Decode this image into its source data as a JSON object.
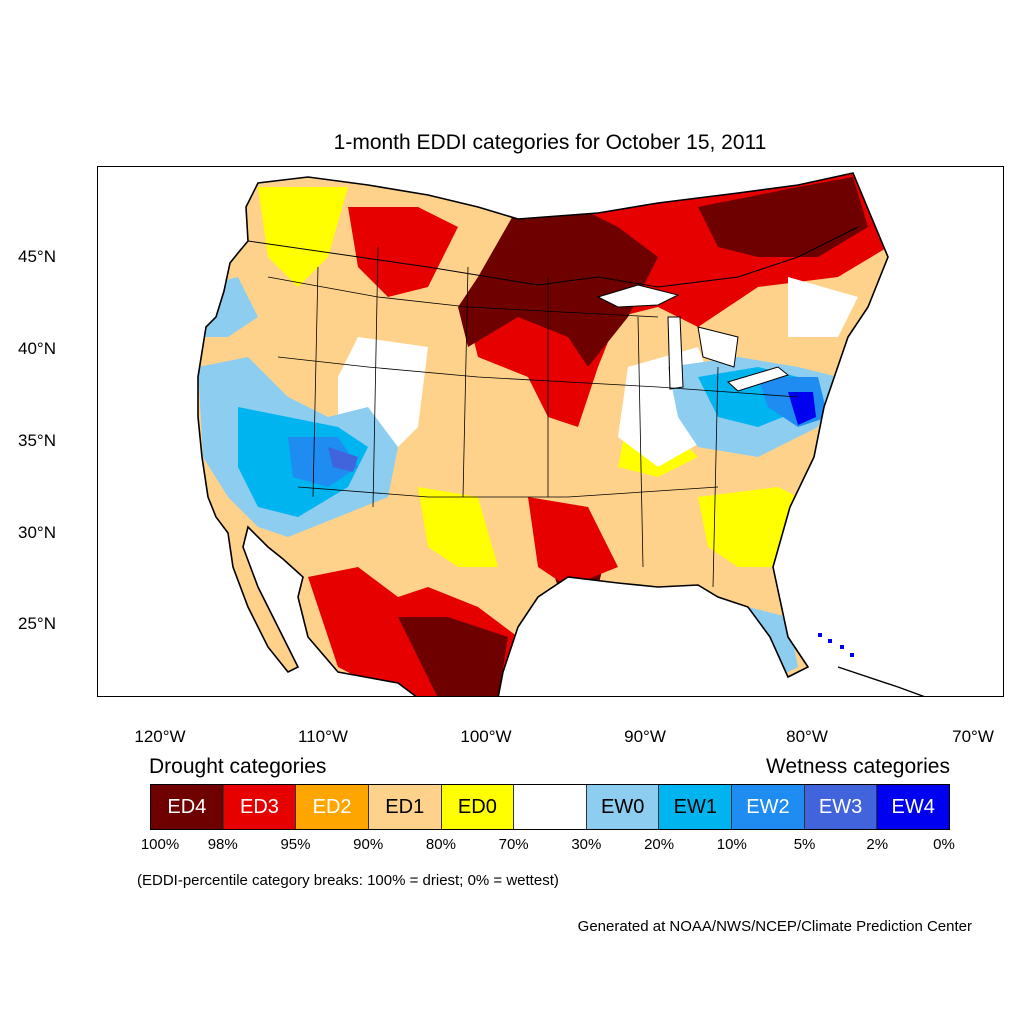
{
  "title": "1-month EDDI categories for October 15, 2011",
  "map": {
    "lat_labels": [
      "45°N",
      "40°N",
      "35°N",
      "30°N",
      "25°N"
    ],
    "lon_labels": [
      "120°W",
      "110°W",
      "100°W",
      "90°W",
      "80°W",
      "70°W"
    ]
  },
  "legend": {
    "drought_label": "Drought categories",
    "wetness_label": "Wetness categories",
    "categories": [
      {
        "label": "ED4",
        "color": "#6e0000",
        "text_color": "#ffffff"
      },
      {
        "label": "ED3",
        "color": "#e60000",
        "text_color": "#ffffff"
      },
      {
        "label": "ED2",
        "color": "#ffa500",
        "text_color": "#ffffff"
      },
      {
        "label": "ED1",
        "color": "#ffd28c",
        "text_color": "#000000"
      },
      {
        "label": "ED0",
        "color": "#ffff00",
        "text_color": "#000000"
      },
      {
        "label": "",
        "color": "#ffffff",
        "text_color": "#000000"
      },
      {
        "label": "EW0",
        "color": "#8ccdf0",
        "text_color": "#000000"
      },
      {
        "label": "EW1",
        "color": "#00b4f0",
        "text_color": "#000000"
      },
      {
        "label": "EW2",
        "color": "#1e8cf0",
        "text_color": "#ffffff"
      },
      {
        "label": "EW3",
        "color": "#4164dc",
        "text_color": "#ffffff"
      },
      {
        "label": "EW4",
        "color": "#0000f0",
        "text_color": "#ffffff"
      }
    ],
    "breaks": [
      "100%",
      "98%",
      "95%",
      "90%",
      "80%",
      "70%",
      "30%",
      "20%",
      "10%",
      "5%",
      "2%",
      "0%"
    ],
    "note": "(EDDI-percentile category breaks: 100% = driest; 0% = wettest)"
  },
  "credit": "Generated at NOAA/NWS/NCEP/Climate Prediction Center"
}
